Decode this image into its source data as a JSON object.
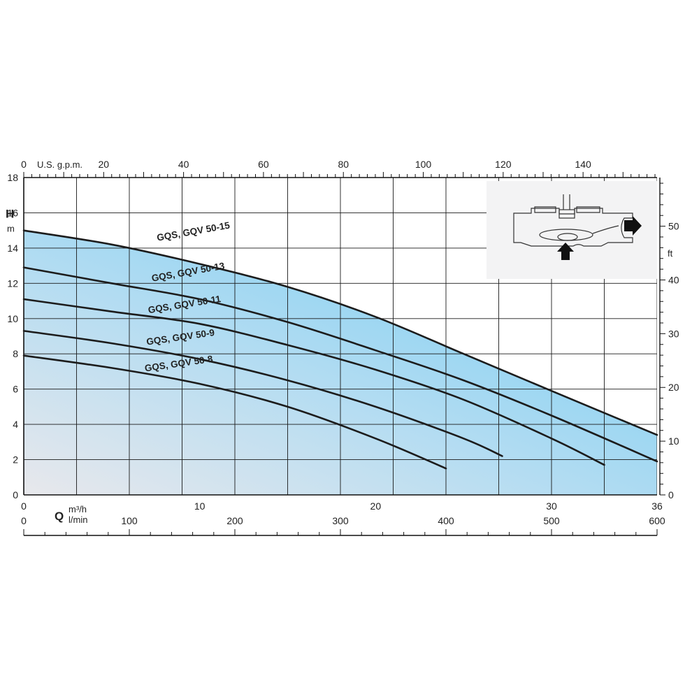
{
  "chart_data": {
    "type": "line",
    "title": "",
    "xlabel": "Q",
    "ylabel": "H",
    "x_unit": "m³/h",
    "x_unit_secondary": "l/min",
    "y_unit": "m",
    "y_unit_secondary": "ft",
    "x_top_label": "U.S. g.p.m.",
    "xlim": [
      0,
      36
    ],
    "ylim": [
      0,
      18
    ],
    "grid": true,
    "x_ticks": [
      0,
      10,
      20,
      30,
      36
    ],
    "x_lmin_ticks": [
      0,
      100,
      200,
      300,
      400,
      500,
      600
    ],
    "x_gpm_ticks": [
      0,
      20,
      40,
      60,
      80,
      100,
      120,
      140
    ],
    "y_ticks": [
      0,
      2,
      4,
      6,
      8,
      10,
      12,
      14,
      16,
      18
    ],
    "y_ft_ticks": [
      0,
      10,
      20,
      30,
      40,
      50
    ],
    "series": [
      {
        "name": "GQS, GQV 50-15",
        "x": [
          0,
          5,
          10,
          15,
          20,
          25,
          30,
          36
        ],
        "y": [
          15.0,
          14.2,
          13.1,
          11.8,
          10.1,
          8.0,
          5.9,
          3.4
        ]
      },
      {
        "name": "GQS, GQV 50-13",
        "x": [
          0,
          5,
          10,
          15,
          20,
          25,
          30,
          36
        ],
        "y": [
          12.9,
          12.0,
          11.1,
          9.8,
          8.2,
          6.5,
          4.5,
          1.9
        ]
      },
      {
        "name": "GQS, GQV 50-11",
        "x": [
          0,
          5,
          10,
          15,
          20,
          25,
          30,
          33
        ],
        "y": [
          11.1,
          10.4,
          9.7,
          8.5,
          7.1,
          5.4,
          3.2,
          1.7
        ]
      },
      {
        "name": "GQS, GQV 50-9",
        "x": [
          0,
          5,
          10,
          15,
          20,
          25,
          27.2
        ],
        "y": [
          9.3,
          8.6,
          7.7,
          6.5,
          5.0,
          3.2,
          2.2
        ]
      },
      {
        "name": "GQS, GQV 50-8",
        "x": [
          0,
          5,
          10,
          15,
          20,
          24
        ],
        "y": [
          7.9,
          7.2,
          6.3,
          5.0,
          3.2,
          1.5
        ]
      }
    ]
  },
  "icon": "pump-flow-diagram"
}
